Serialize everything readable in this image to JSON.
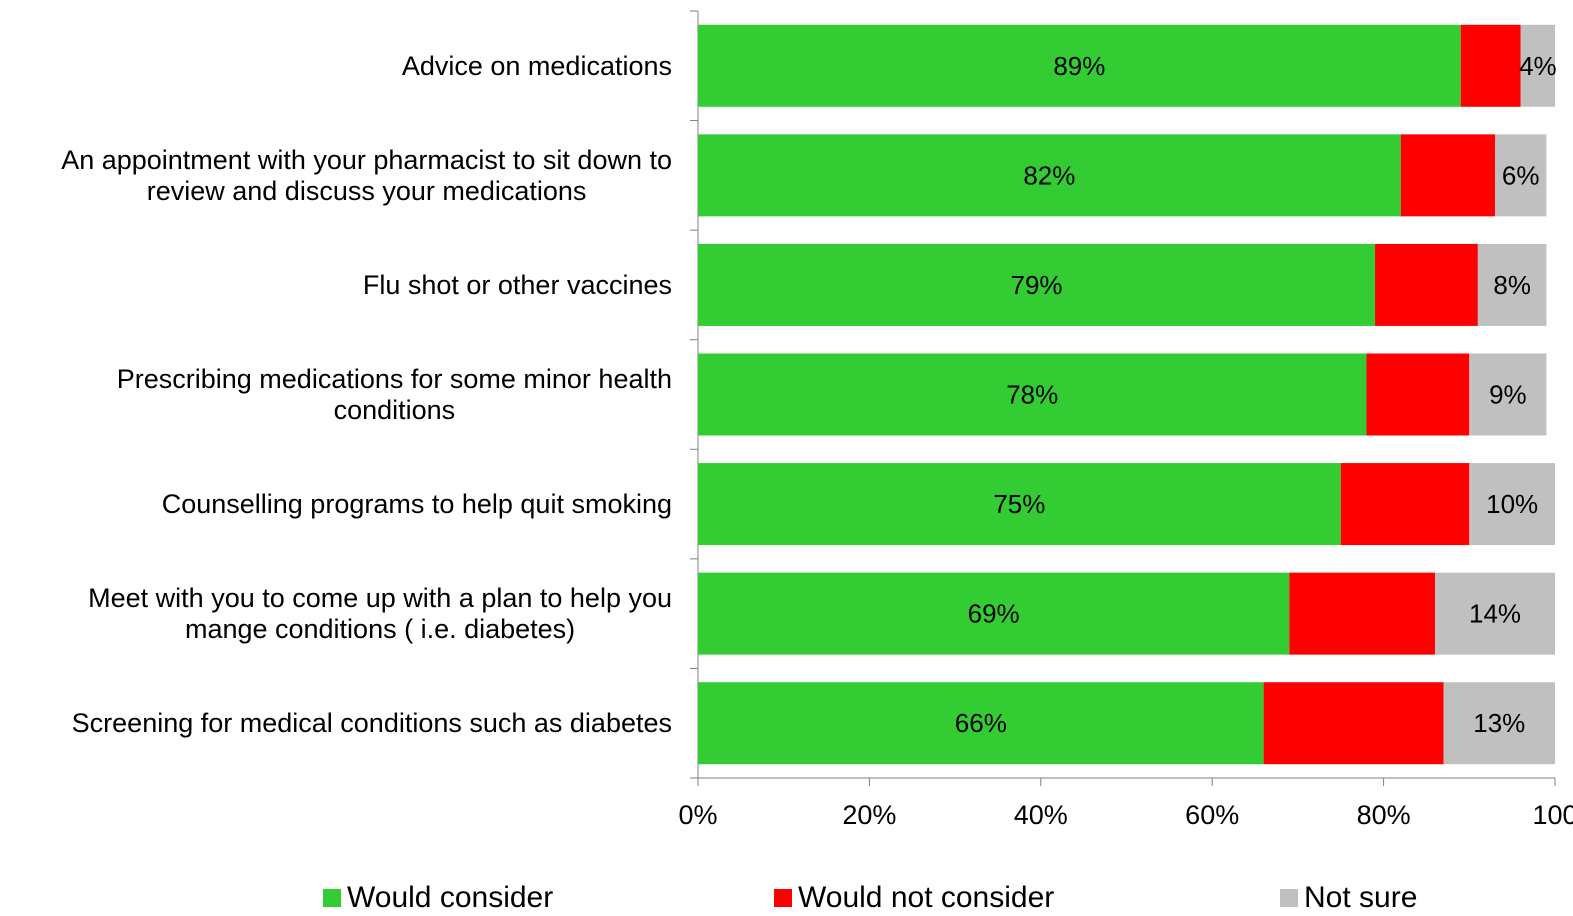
{
  "chart_data": {
    "type": "bar",
    "orientation": "horizontal",
    "stacked": true,
    "categories": [
      [
        "Advice on medications"
      ],
      [
        "An appointment with your pharmacist to sit down to",
        "review and discuss your medications"
      ],
      [
        "Flu shot or other vaccines"
      ],
      [
        "Prescribing medications for some minor health",
        "conditions"
      ],
      [
        "Counselling programs to help quit smoking"
      ],
      [
        "Meet with you to come up with a plan to help you",
        "mange conditions ( i.e. diabetes)"
      ],
      [
        "Screening for medical conditions such as diabetes"
      ]
    ],
    "series": [
      {
        "name": "Would consider",
        "color": "#33cc33",
        "label_color": "#000000",
        "values": [
          89,
          82,
          79,
          78,
          75,
          69,
          66
        ]
      },
      {
        "name": "Would not consider",
        "color": "#ff0000",
        "label_color": "#ff0000",
        "values": [
          7,
          11,
          12,
          12,
          15,
          17,
          21
        ]
      },
      {
        "name": "Not sure",
        "color": "#c0c0c0",
        "label_color": "#000000",
        "values": [
          4,
          6,
          8,
          9,
          10,
          14,
          13
        ]
      }
    ],
    "value_suffix": "%",
    "x_ticks": [
      "0%",
      "20%",
      "40%",
      "60%",
      "80%",
      "100"
    ],
    "xlim": [
      0,
      100
    ],
    "grid": false,
    "legend_position": "bottom"
  }
}
